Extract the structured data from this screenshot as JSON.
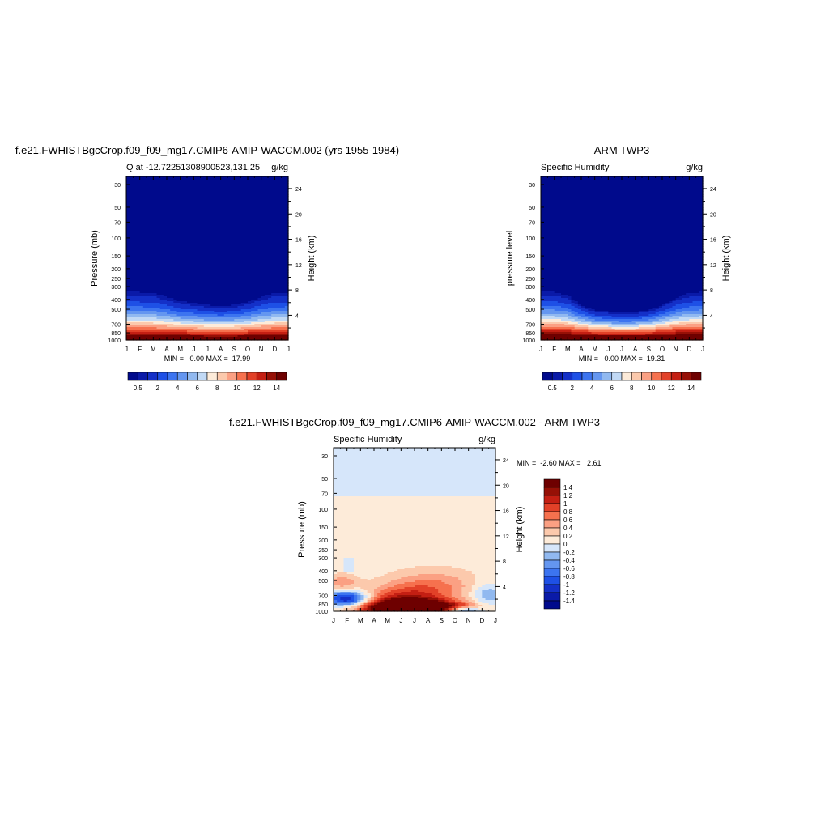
{
  "chart_data": [
    {
      "type": "heatmap",
      "title": "f.e21.FWHISTBgcCrop.f09_f09_mg17.CMIP6-AMIP-WACCM.002 (yrs 1955-1984)",
      "subtitle_left": "Q at -12.72251308900523,131.25",
      "subtitle_right": "g/kg",
      "ylabel": "Pressure (mb)",
      "ylabel_right": "Height (km)",
      "x_ticks": [
        "J",
        "F",
        "M",
        "A",
        "M",
        "J",
        "J",
        "A",
        "S",
        "O",
        "N",
        "D",
        "J"
      ],
      "y_ticks": [
        30,
        50,
        70,
        100,
        150,
        200,
        250,
        300,
        400,
        500,
        700,
        850,
        1000
      ],
      "y_ticks_right": [
        4,
        8,
        12,
        16,
        20,
        24
      ],
      "ylim": [
        1000,
        25
      ],
      "y_scale": "log",
      "minmax_text": "MIN =   0.00 MAX =  17.99",
      "colorbar_levels": [
        0.5,
        1,
        2,
        3,
        4,
        5,
        6,
        7,
        8,
        9,
        10,
        11,
        12,
        13,
        14
      ],
      "colorbar_labels": [
        "0.5",
        "2",
        "4",
        "6",
        "8",
        "10",
        "12",
        "14"
      ],
      "colors": [
        "#000a8c",
        "#0a1aa8",
        "#1430c8",
        "#1e50e6",
        "#3c74f0",
        "#6496f0",
        "#91b9f0",
        "#c1d9f5",
        "#fdebd9",
        "#fcc9ac",
        "#fba083",
        "#f6714e",
        "#e24128",
        "#c41f13",
        "#961006",
        "#6e0000"
      ],
      "surface_value": 16.5,
      "lapse_scale": 180,
      "top_pressure_by_month": [
        300,
        300,
        305,
        340,
        380,
        400,
        420,
        430,
        420,
        390,
        340,
        305,
        300
      ]
    },
    {
      "type": "heatmap",
      "title": "ARM TWP3",
      "subtitle_left": "Specific Humidity",
      "subtitle_right": "g/kg",
      "ylabel": "pressure level",
      "ylabel_right": "Height (km)",
      "x_ticks": [
        "J",
        "F",
        "M",
        "A",
        "M",
        "J",
        "J",
        "A",
        "S",
        "O",
        "N",
        "D",
        "J"
      ],
      "y_ticks": [
        30,
        50,
        70,
        100,
        150,
        200,
        250,
        300,
        400,
        500,
        700,
        850,
        1000
      ],
      "y_ticks_right": [
        4,
        8,
        12,
        16,
        20,
        24
      ],
      "ylim": [
        1000,
        25
      ],
      "y_scale": "log",
      "minmax_text": "MIN =   0.00 MAX =  19.31",
      "colorbar_levels": [
        0.5,
        1,
        2,
        3,
        4,
        5,
        6,
        7,
        8,
        9,
        10,
        11,
        12,
        13,
        14
      ],
      "colorbar_labels": [
        "0.5",
        "2",
        "4",
        "6",
        "8",
        "10",
        "12",
        "14"
      ],
      "colors": [
        "#000a8c",
        "#0a1aa8",
        "#1430c8",
        "#1e50e6",
        "#3c74f0",
        "#6496f0",
        "#91b9f0",
        "#c1d9f5",
        "#fdebd9",
        "#fcc9ac",
        "#fba083",
        "#f6714e",
        "#e24128",
        "#c41f13",
        "#961006",
        "#6e0000"
      ],
      "surface_value": 17.5,
      "lapse_scale": 170,
      "top_pressure_by_month": [
        300,
        300,
        330,
        420,
        480,
        500,
        520,
        510,
        480,
        420,
        350,
        310,
        300
      ]
    },
    {
      "type": "heatmap",
      "title": "f.e21.FWHISTBgcCrop.f09_f09_mg17.CMIP6-AMIP-WACCM.002 - ARM TWP3",
      "subtitle_left": "Specific Humidity",
      "subtitle_right": "g/kg",
      "ylabel": "Pressure (mb)",
      "ylabel_right": "Height (km)",
      "x_ticks": [
        "J",
        "F",
        "M",
        "A",
        "M",
        "J",
        "J",
        "A",
        "S",
        "O",
        "N",
        "D",
        "J"
      ],
      "y_ticks": [
        30,
        50,
        70,
        100,
        150,
        200,
        250,
        300,
        400,
        500,
        700,
        850,
        1000
      ],
      "y_ticks_right": [
        4,
        8,
        12,
        16,
        20,
        24
      ],
      "ylim": [
        1000,
        25
      ],
      "y_scale": "log",
      "minmax_text": "MIN =  -2.60 MAX =   2.61",
      "colorbar_levels": [
        -1.4,
        -1.2,
        -1,
        -0.8,
        -0.6,
        -0.4,
        -0.2,
        0,
        0.2,
        0.4,
        0.6,
        0.8,
        1,
        1.2,
        1.4
      ],
      "colorbar_labels": [
        "1.4",
        "1.2",
        "1",
        "0.8",
        "0.6",
        "0.4",
        "0.2",
        "0",
        "-0.2",
        "-0.4",
        "-0.6",
        "-0.8",
        "-1",
        "-1.2",
        "-1.4"
      ],
      "colors": [
        "#000a8c",
        "#0a1aa8",
        "#1430c8",
        "#1e50e6",
        "#3c74f0",
        "#6496f0",
        "#91b9f0",
        "#d6e6fa",
        "#fdebd9",
        "#fcc9ac",
        "#fba083",
        "#f6714e",
        "#e24128",
        "#c41f13",
        "#961006",
        "#6e0000"
      ],
      "upper_negative_above_pressure": 75,
      "lower_positive_features": [
        {
          "month": 6.0,
          "pressure": 930,
          "amp": 2.2,
          "sx": 2.6,
          "sp": 0.12
        },
        {
          "month": 5.2,
          "pressure": 780,
          "amp": 0.9,
          "sx": 2.0,
          "sp": 0.22
        },
        {
          "month": 7.4,
          "pressure": 560,
          "amp": 0.5,
          "sx": 2.2,
          "sp": 0.25
        },
        {
          "month": 0.6,
          "pressure": 520,
          "amp": 0.45,
          "sx": 0.8,
          "sp": 0.12
        }
      ],
      "lower_negative_features": [
        {
          "month": 1.0,
          "pressure": 760,
          "amp": -1.4,
          "sx": 1.1,
          "sp": 0.12
        },
        {
          "month": 9.5,
          "pressure": 980,
          "amp": -1.2,
          "sx": 1.0,
          "sp": 0.05
        },
        {
          "month": 11.4,
          "pressure": 700,
          "amp": -0.5,
          "sx": 0.8,
          "sp": 0.2
        }
      ]
    }
  ]
}
